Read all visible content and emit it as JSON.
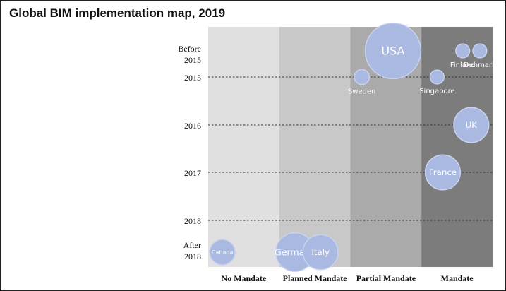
{
  "chart_data": {
    "type": "bubble",
    "title": "Global BIM implementation map, 2019",
    "xlabel": "",
    "ylabel": "",
    "categories": [
      "No Mandate",
      "Planned Mandate",
      "Partial Mandate",
      "Mandate"
    ],
    "y_levels": [
      "Before 2015",
      "2015",
      "2016",
      "2017",
      "2018",
      "After 2018"
    ],
    "grid": "dashed horizontal lines at 2015, 2016, 2017, 2018",
    "column_colors": [
      "#e0e0e0",
      "#c8c8c8",
      "#aaaaaa",
      "#7c7c7c"
    ],
    "bubble_color": "#aab9e2",
    "points": [
      {
        "label": "Canada",
        "category": "No Mandate",
        "year": "After 2018",
        "offset": 0.2,
        "size": 1.0
      },
      {
        "label": "Germany",
        "category": "Planned Mandate",
        "year": "After 2018",
        "offset": 0.22,
        "size": 2.3
      },
      {
        "label": "Italy",
        "category": "Planned Mandate",
        "year": "After 2018",
        "offset": 0.58,
        "size": 1.9
      },
      {
        "label": "USA",
        "category": "Partial Mandate",
        "year": "Before 2015",
        "offset": 0.6,
        "size": 4.8
      },
      {
        "label": "Sweden",
        "category": "Partial Mandate",
        "year": "2015",
        "offset": 0.16,
        "size": 0.35
      },
      {
        "label": "Denmark",
        "category": "Mandate",
        "year": "Before 2015",
        "offset": 0.82,
        "size": 0.3
      },
      {
        "label": "Finland",
        "category": "Mandate",
        "year": "Before 2015",
        "offset": 0.58,
        "size": 0.3
      },
      {
        "label": "Singapore",
        "category": "Mandate",
        "year": "2015",
        "offset": 0.22,
        "size": 0.3
      },
      {
        "label": "UK",
        "category": "Mandate",
        "year": "2016",
        "offset": 0.7,
        "size": 1.9
      },
      {
        "label": "France",
        "category": "Mandate",
        "year": "2017",
        "offset": 0.3,
        "size": 1.9
      }
    ]
  }
}
